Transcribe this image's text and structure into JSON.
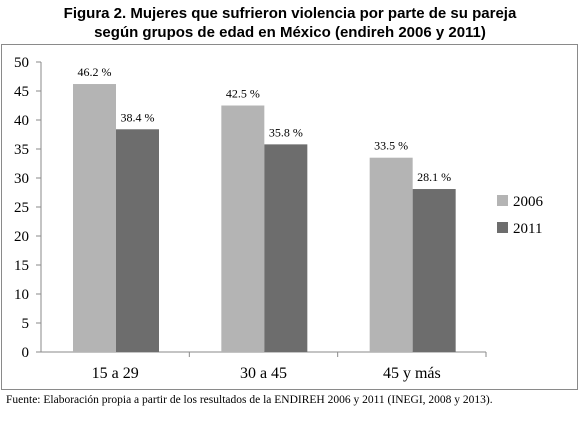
{
  "title_line1": "Figura 2. Mujeres que sufrieron violencia por parte de su pareja",
  "title_line2": "según grupos de edad en México (endireh 2006 y 2011)",
  "source_note": "Fuente: Elaboración propia a partir de los resultados de la ENDIREH 2006 y 2011 (INEGI, 2008 y 2013).",
  "chart_data": {
    "type": "bar",
    "title": "Figura 2. Mujeres que sufrieron violencia por parte de su pareja según grupos de edad en México (endireh 2006 y 2011)",
    "xlabel": "",
    "ylabel": "",
    "ylim": [
      0,
      50
    ],
    "yticks": [
      0,
      5,
      10,
      15,
      20,
      25,
      30,
      35,
      40,
      45,
      50
    ],
    "categories": [
      "15 a 29",
      "30 a 45",
      "45 y más"
    ],
    "series": [
      {
        "name": "2006",
        "values": [
          46.2,
          42.5,
          33.5
        ],
        "labels": [
          "46.2 %",
          "42.5 %",
          "33.5 %"
        ],
        "color": "#b4b4b4"
      },
      {
        "name": "2011",
        "values": [
          38.4,
          35.8,
          28.1
        ],
        "labels": [
          "38.4 %",
          "35.8 %",
          "28.1 %"
        ],
        "color": "#6d6d6d"
      }
    ],
    "legend_position": "right",
    "grid": false
  }
}
